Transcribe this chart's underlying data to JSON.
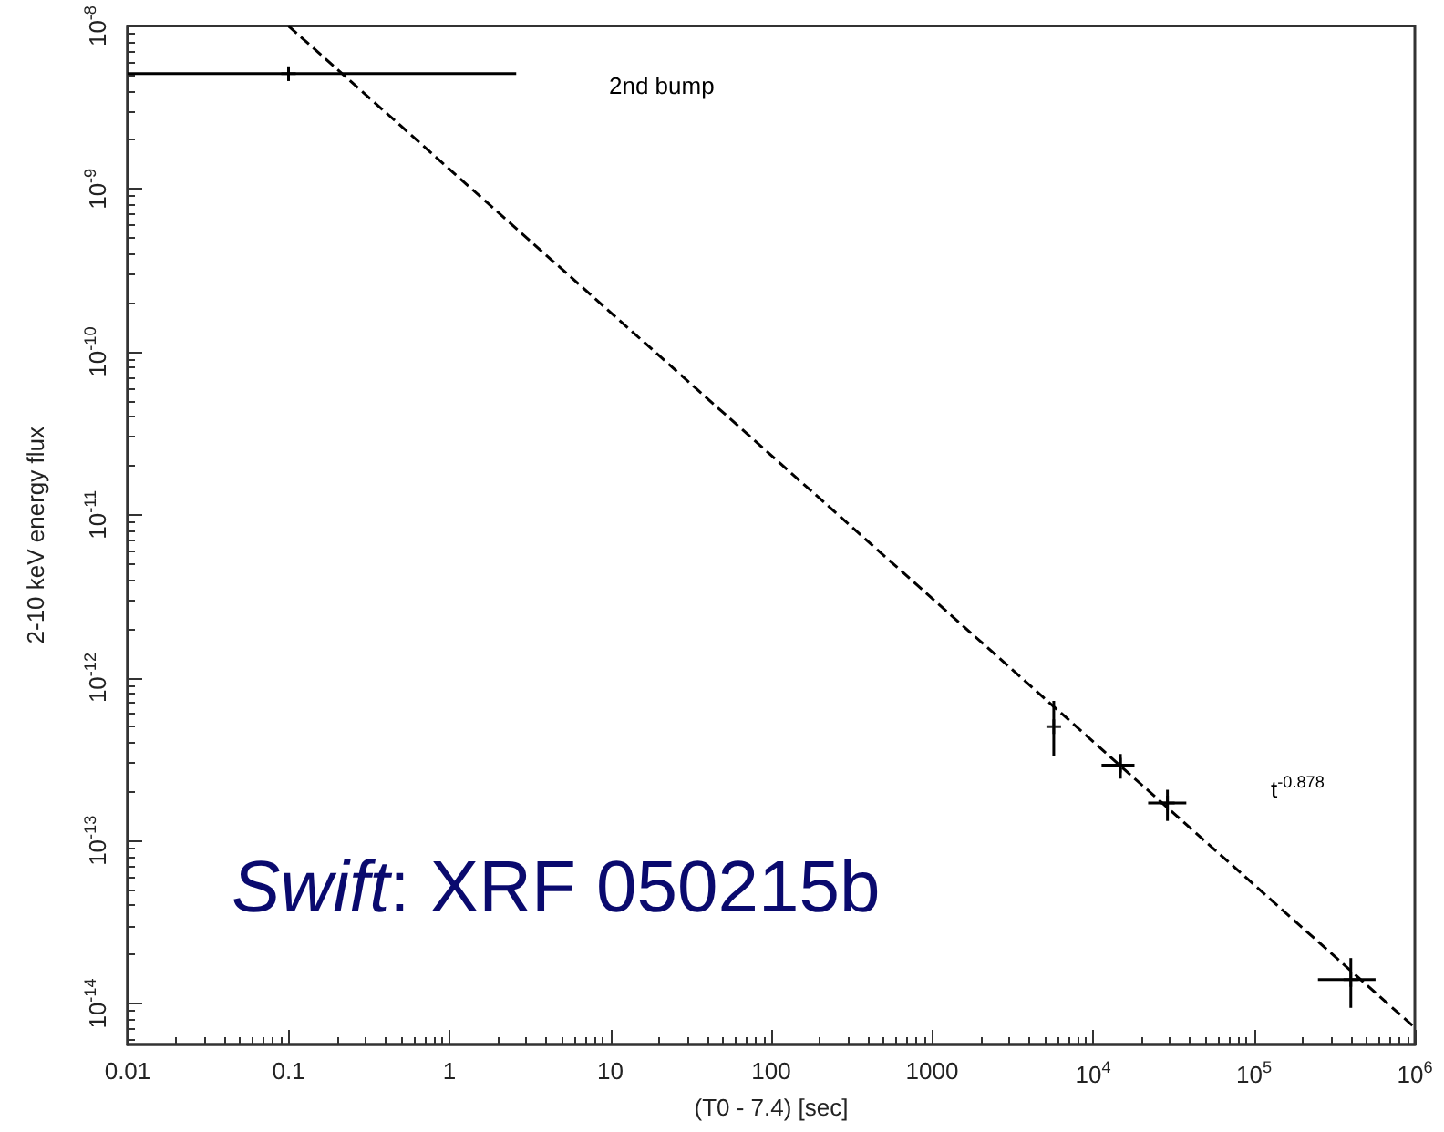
{
  "chart_data": {
    "type": "scatter",
    "title": "Swift: XRF 050215b",
    "xlabel": "(T0 - 7.4) [sec]",
    "ylabel": "2-10 keV energy flux",
    "log": "xy",
    "grid": false,
    "xlim": [
      0.01,
      1000000
    ],
    "ylim": [
      5.6e-15,
      1e-08
    ],
    "xticks": [
      0.01,
      0.1,
      1,
      10,
      100,
      1000,
      {
        "value": 10000,
        "label": "10$^{4}$"
      },
      {
        "value": 100000,
        "label": "10$^{5}$"
      },
      {
        "value": 1000000,
        "label": "10$^{6}$"
      }
    ],
    "yticks": [
      {
        "value": 1e-08,
        "label": "10$^{-8}$"
      },
      {
        "value": 1e-09,
        "label": "10$^{-9}$"
      },
      {
        "value": 1e-10,
        "label": "10$^{-10}$"
      },
      {
        "value": 1e-11,
        "label": "10$^{-11}$"
      },
      {
        "value": 1e-12,
        "label": "10$^{-12}$"
      },
      {
        "value": 1e-13,
        "label": "10$^{-13}$"
      },
      {
        "value": 1e-14,
        "label": "10$^{-14}$"
      }
    ],
    "series": [
      {
        "color": "#000000",
        "marker": "cross",
        "x": [
          0.1,
          5700,
          14800,
          29000,
          400000
        ],
        "values": [
          5.1e-09,
          5e-13,
          2.9e-13,
          1.7e-13,
          1.4e-14
        ],
        "errors": [
          [
            4.6e-09,
            5.6e-09
          ],
          [
            3.3e-13,
            7.2e-13
          ],
          [
            2.4e-13,
            3.4e-13
          ],
          [
            1.32e-13,
            2.05e-13
          ],
          [
            9.4e-15,
            1.9e-14
          ]
        ],
        "xerrors": [
          [
            0.01,
            2.6
          ],
          null,
          [
            11300,
            18100
          ],
          [
            22000,
            38000
          ],
          [
            250000,
            570000
          ]
        ]
      },
      {
        "type": "line",
        "color": "#000000",
        "line_style": "dashed",
        "x": [
          0.1,
          1000000
        ],
        "values": [
          1e-08,
          7.1e-15
        ]
      }
    ],
    "annotations": [
      "2nd bump",
      "t$^{-0.878}$"
    ]
  }
}
